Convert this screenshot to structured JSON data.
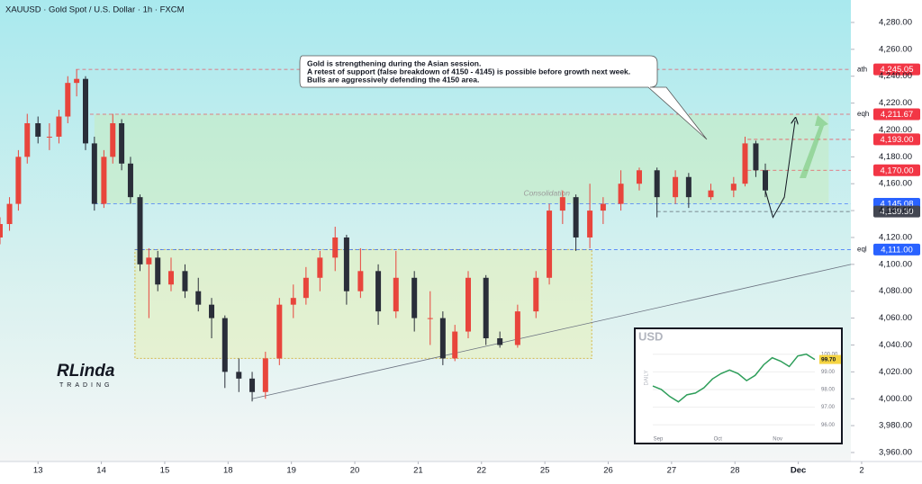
{
  "chart_data": {
    "type": "candlestick",
    "title": "XAUUSD · Gold Spot / U.S. Dollar · 1h · FXCM",
    "annotation": [
      "Gold is strengthening during the Asian session.",
      "A retest of support (false breakdown of 4150 - 4145) is possible before growth next week.",
      "Bulls are aggressively defending the 4150 area."
    ],
    "zone_label": "Consolidation",
    "logo": [
      "RLinda",
      "TRADING"
    ],
    "up_color": "#e8453c",
    "down_color": "#2a2e39",
    "xlim": [
      -0.6,
      12.83
    ],
    "ylim": [
      3953.3,
      4296.7
    ],
    "xticks": [
      {
        "value": 0,
        "label": "13"
      },
      {
        "value": 1,
        "label": "14"
      },
      {
        "value": 2,
        "label": "15"
      },
      {
        "value": 3,
        "label": "18"
      },
      {
        "value": 4,
        "label": "19"
      },
      {
        "value": 5,
        "label": "20"
      },
      {
        "value": 6,
        "label": "21"
      },
      {
        "value": 7,
        "label": "22"
      },
      {
        "value": 8,
        "label": "25"
      },
      {
        "value": 9,
        "label": "26"
      },
      {
        "value": 10,
        "label": "27"
      },
      {
        "value": 11,
        "label": "28"
      },
      {
        "value": 12,
        "label": "Dec"
      },
      {
        "value": 13,
        "label": "2"
      }
    ],
    "yticks": [
      {
        "value": 3960,
        "label": "3,960.00"
      },
      {
        "value": 3980,
        "label": "3,980.00"
      },
      {
        "value": 4000,
        "label": "4,000.00"
      },
      {
        "value": 4020,
        "label": "4,020.00"
      },
      {
        "value": 4040,
        "label": "4,040.00"
      },
      {
        "value": 4060,
        "label": "4,060.00"
      },
      {
        "value": 4080,
        "label": "4,080.00"
      },
      {
        "value": 4100,
        "label": "4,100.00"
      },
      {
        "value": 4120,
        "label": "4,120.00"
      },
      {
        "value": 4140,
        "label": "4,140.00"
      },
      {
        "value": 4160,
        "label": "4,160.00"
      },
      {
        "value": 4180,
        "label": "4,180.00"
      },
      {
        "value": 4200,
        "label": "4,200.00"
      },
      {
        "value": 4220,
        "label": "4,220.00"
      },
      {
        "value": 4240,
        "label": "4,240.00"
      },
      {
        "value": 4260,
        "label": "4,260.00"
      },
      {
        "value": 4280,
        "label": "4,280.00"
      }
    ],
    "x": [
      -0.6,
      -0.45,
      -0.31,
      -0.17,
      0,
      0.18,
      0.33,
      0.47,
      0.61,
      0.75,
      0.89,
      1.04,
      1.18,
      1.32,
      1.46,
      1.61,
      1.75,
      1.89,
      2.1,
      2.32,
      2.53,
      2.74,
      2.95,
      3.17,
      3.38,
      3.59,
      3.81,
      4.03,
      4.23,
      4.45,
      4.69,
      4.87,
      5.09,
      5.37,
      5.65,
      5.94,
      6.19,
      6.39,
      6.58,
      6.79,
      7.07,
      7.29,
      7.57,
      7.86,
      8.07,
      8.28,
      8.49,
      8.71,
      8.92,
      9.2,
      9.49,
      9.77,
      10.06,
      10.27,
      10.62,
      10.98,
      11.16,
      11.33,
      11.48
    ],
    "open": [
      4120,
      4130,
      4145,
      4180,
      4205,
      4195,
      4195,
      4210,
      4235,
      4238,
      4190,
      4145,
      4180,
      4205,
      4175,
      4150,
      4100,
      4105,
      4085,
      4095,
      4080,
      4070,
      4060,
      4020,
      4015,
      4005,
      4030,
      4070,
      4075,
      4090,
      4105,
      4120,
      4080,
      4095,
      4065,
      4090,
      4060,
      4060,
      4030,
      4050,
      4090,
      4045,
      4040,
      4065,
      4090,
      4140,
      4150,
      4120,
      4140,
      4145,
      4160,
      4170,
      4150,
      4165,
      4150,
      4155,
      4160,
      4190,
      4170
    ],
    "high": [
      4135,
      4150,
      4185,
      4212,
      4210,
      4205,
      4215,
      4240,
      4245,
      4240,
      4195,
      4185,
      4212,
      4208,
      4180,
      4152,
      4112,
      4110,
      4105,
      4100,
      4090,
      4075,
      4062,
      4030,
      4020,
      4035,
      4075,
      4085,
      4098,
      4110,
      4128,
      4122,
      4112,
      4100,
      4110,
      4095,
      4080,
      4065,
      4055,
      4095,
      4092,
      4050,
      4070,
      4095,
      4145,
      4155,
      4152,
      4160,
      4150,
      4170,
      4172,
      4172,
      4170,
      4168,
      4160,
      4165,
      4195,
      4192,
      4175
    ],
    "low": [
      4115,
      4125,
      4140,
      4175,
      4190,
      4185,
      4190,
      4205,
      4225,
      4185,
      4140,
      4142,
      4175,
      4170,
      4145,
      4095,
      4060,
      4080,
      4080,
      4075,
      4065,
      4045,
      4008,
      4005,
      3998,
      4000,
      4025,
      4060,
      4070,
      4080,
      4095,
      4070,
      4075,
      4055,
      4060,
      4050,
      4040,
      4025,
      4028,
      4045,
      4040,
      4038,
      4038,
      4060,
      4085,
      4130,
      4110,
      4112,
      4130,
      4140,
      4155,
      4135,
      4145,
      4142,
      4148,
      4150,
      4158,
      4165,
      4150
    ],
    "close": [
      4130,
      4145,
      4180,
      4205,
      4195,
      4195,
      4210,
      4235,
      4238,
      4190,
      4145,
      4180,
      4205,
      4175,
      4150,
      4100,
      4105,
      4085,
      4095,
      4080,
      4070,
      4060,
      4020,
      4015,
      4005,
      4030,
      4070,
      4075,
      4090,
      4105,
      4120,
      4080,
      4095,
      4065,
      4090,
      4060,
      4060,
      4030,
      4050,
      4090,
      4045,
      4040,
      4065,
      4090,
      4140,
      4150,
      4120,
      4140,
      4145,
      4160,
      4170,
      4150,
      4165,
      4150,
      4155,
      4160,
      4190,
      4170,
      4155
    ],
    "levels": [
      {
        "value": 4245.05,
        "label": "4,245.05",
        "name": "ath",
        "color": "#f23645",
        "x_start": 0.6
      },
      {
        "value": 4211.67,
        "label": "4,211.67",
        "name": "eqh",
        "color": "#f23645",
        "x_start": 0.82
      },
      {
        "value": 4193,
        "label": "4,193.00",
        "color": "#f23645",
        "x_start": 11.2
      },
      {
        "value": 4170,
        "label": "4,170.00",
        "color": "#f23645",
        "x_start": 11.2
      },
      {
        "value": 4145.08,
        "label": "4,145.08",
        "color": "#2962ff",
        "x_start": 0.89
      },
      {
        "value": 4139.3,
        "label": "4,139.30",
        "color": "#434651",
        "x_start": 9.77
      },
      {
        "value": 4111,
        "label": "4,111.00",
        "name": "eql",
        "color": "#2962ff",
        "x_start": 1.53
      }
    ],
    "range_zone": {
      "x": [
        0.89,
        12.48
      ],
      "y": [
        4145.08,
        4211.67
      ]
    },
    "consolidation_zone": {
      "x": [
        1.53,
        8.74
      ],
      "y": [
        4030,
        4111
      ]
    },
    "trendline": {
      "x": [
        3.38,
        12.83
      ],
      "y": [
        4000,
        4100
      ]
    },
    "projection": {
      "x": [
        11.48,
        11.6,
        11.78,
        11.95
      ],
      "y": [
        4155,
        4135,
        4150,
        4207
      ]
    },
    "inset": {
      "title": "USD",
      "axis_label": "DAILY",
      "price_label": "99.70",
      "values": [
        98.2,
        98.0,
        97.6,
        97.3,
        97.7,
        97.8,
        98.1,
        98.6,
        98.9,
        99.1,
        98.9,
        98.5,
        98.8,
        99.4,
        99.8,
        99.6,
        99.3,
        99.9,
        100.0,
        99.7
      ],
      "ylim": [
        95.5,
        100.8
      ],
      "yticks": [
        {
          "value": 96,
          "label": "96.00"
        },
        {
          "value": 97,
          "label": "97.00"
        },
        {
          "value": 98,
          "label": "98.00"
        },
        {
          "value": 99,
          "label": "99.00"
        },
        {
          "value": 100,
          "label": "100.00"
        }
      ],
      "xticks": [
        {
          "value": 0,
          "label": "Sep"
        },
        {
          "value": 7,
          "label": "Oct"
        },
        {
          "value": 14,
          "label": "Nov"
        }
      ]
    }
  }
}
